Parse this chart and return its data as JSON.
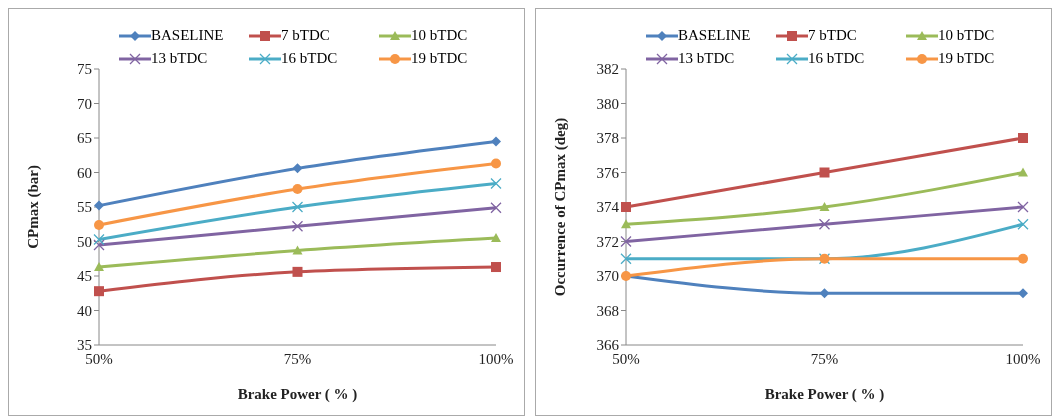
{
  "chart_data": [
    {
      "type": "line",
      "categories": [
        "50%",
        "75%",
        "100%"
      ],
      "xlabel": "Brake Power ( % )",
      "ylabel": "CPmax (bar)",
      "ylim": [
        35,
        75
      ],
      "yticks": [
        35,
        40,
        45,
        50,
        55,
        60,
        65,
        70,
        75
      ],
      "legend": "top",
      "series": [
        {
          "name": "BASELINE",
          "color": "#4f81bd",
          "marker": "diamond",
          "values": [
            55.2,
            60.6,
            64.5
          ]
        },
        {
          "name": "7 bTDC",
          "color": "#c0504d",
          "marker": "square",
          "values": [
            42.8,
            45.6,
            46.3
          ]
        },
        {
          "name": "10 bTDC",
          "color": "#9bbb59",
          "marker": "triangle",
          "values": [
            46.3,
            48.7,
            50.5
          ]
        },
        {
          "name": "13 bTDC",
          "color": "#8064a2",
          "marker": "cross",
          "values": [
            49.5,
            52.2,
            54.9
          ]
        },
        {
          "name": "16 bTDC",
          "color": "#4bacc6",
          "marker": "cross",
          "values": [
            50.3,
            55.0,
            58.4
          ]
        },
        {
          "name": "19 bTDC",
          "color": "#f79646",
          "marker": "circle",
          "values": [
            52.4,
            57.6,
            61.3
          ]
        }
      ]
    },
    {
      "type": "line",
      "categories": [
        "50%",
        "75%",
        "100%"
      ],
      "xlabel": "Brake Power ( % )",
      "ylabel": "Occurrence of CPmax (deg)",
      "ylim": [
        366,
        382
      ],
      "yticks": [
        366,
        368,
        370,
        372,
        374,
        376,
        378,
        380,
        382
      ],
      "legend": "top",
      "series": [
        {
          "name": "BASELINE",
          "color": "#4f81bd",
          "marker": "diamond",
          "values": [
            370,
            369,
            369
          ]
        },
        {
          "name": "7 bTDC",
          "color": "#c0504d",
          "marker": "square",
          "values": [
            374,
            376,
            378
          ]
        },
        {
          "name": "10 bTDC",
          "color": "#9bbb59",
          "marker": "triangle",
          "values": [
            373,
            374,
            376
          ]
        },
        {
          "name": "13 bTDC",
          "color": "#8064a2",
          "marker": "cross",
          "values": [
            372,
            373,
            374
          ]
        },
        {
          "name": "16 bTDC",
          "color": "#4bacc6",
          "marker": "cross",
          "values": [
            371,
            371,
            373
          ]
        },
        {
          "name": "19 bTDC",
          "color": "#f79646",
          "marker": "circle",
          "values": [
            370,
            371,
            371
          ]
        }
      ]
    }
  ]
}
